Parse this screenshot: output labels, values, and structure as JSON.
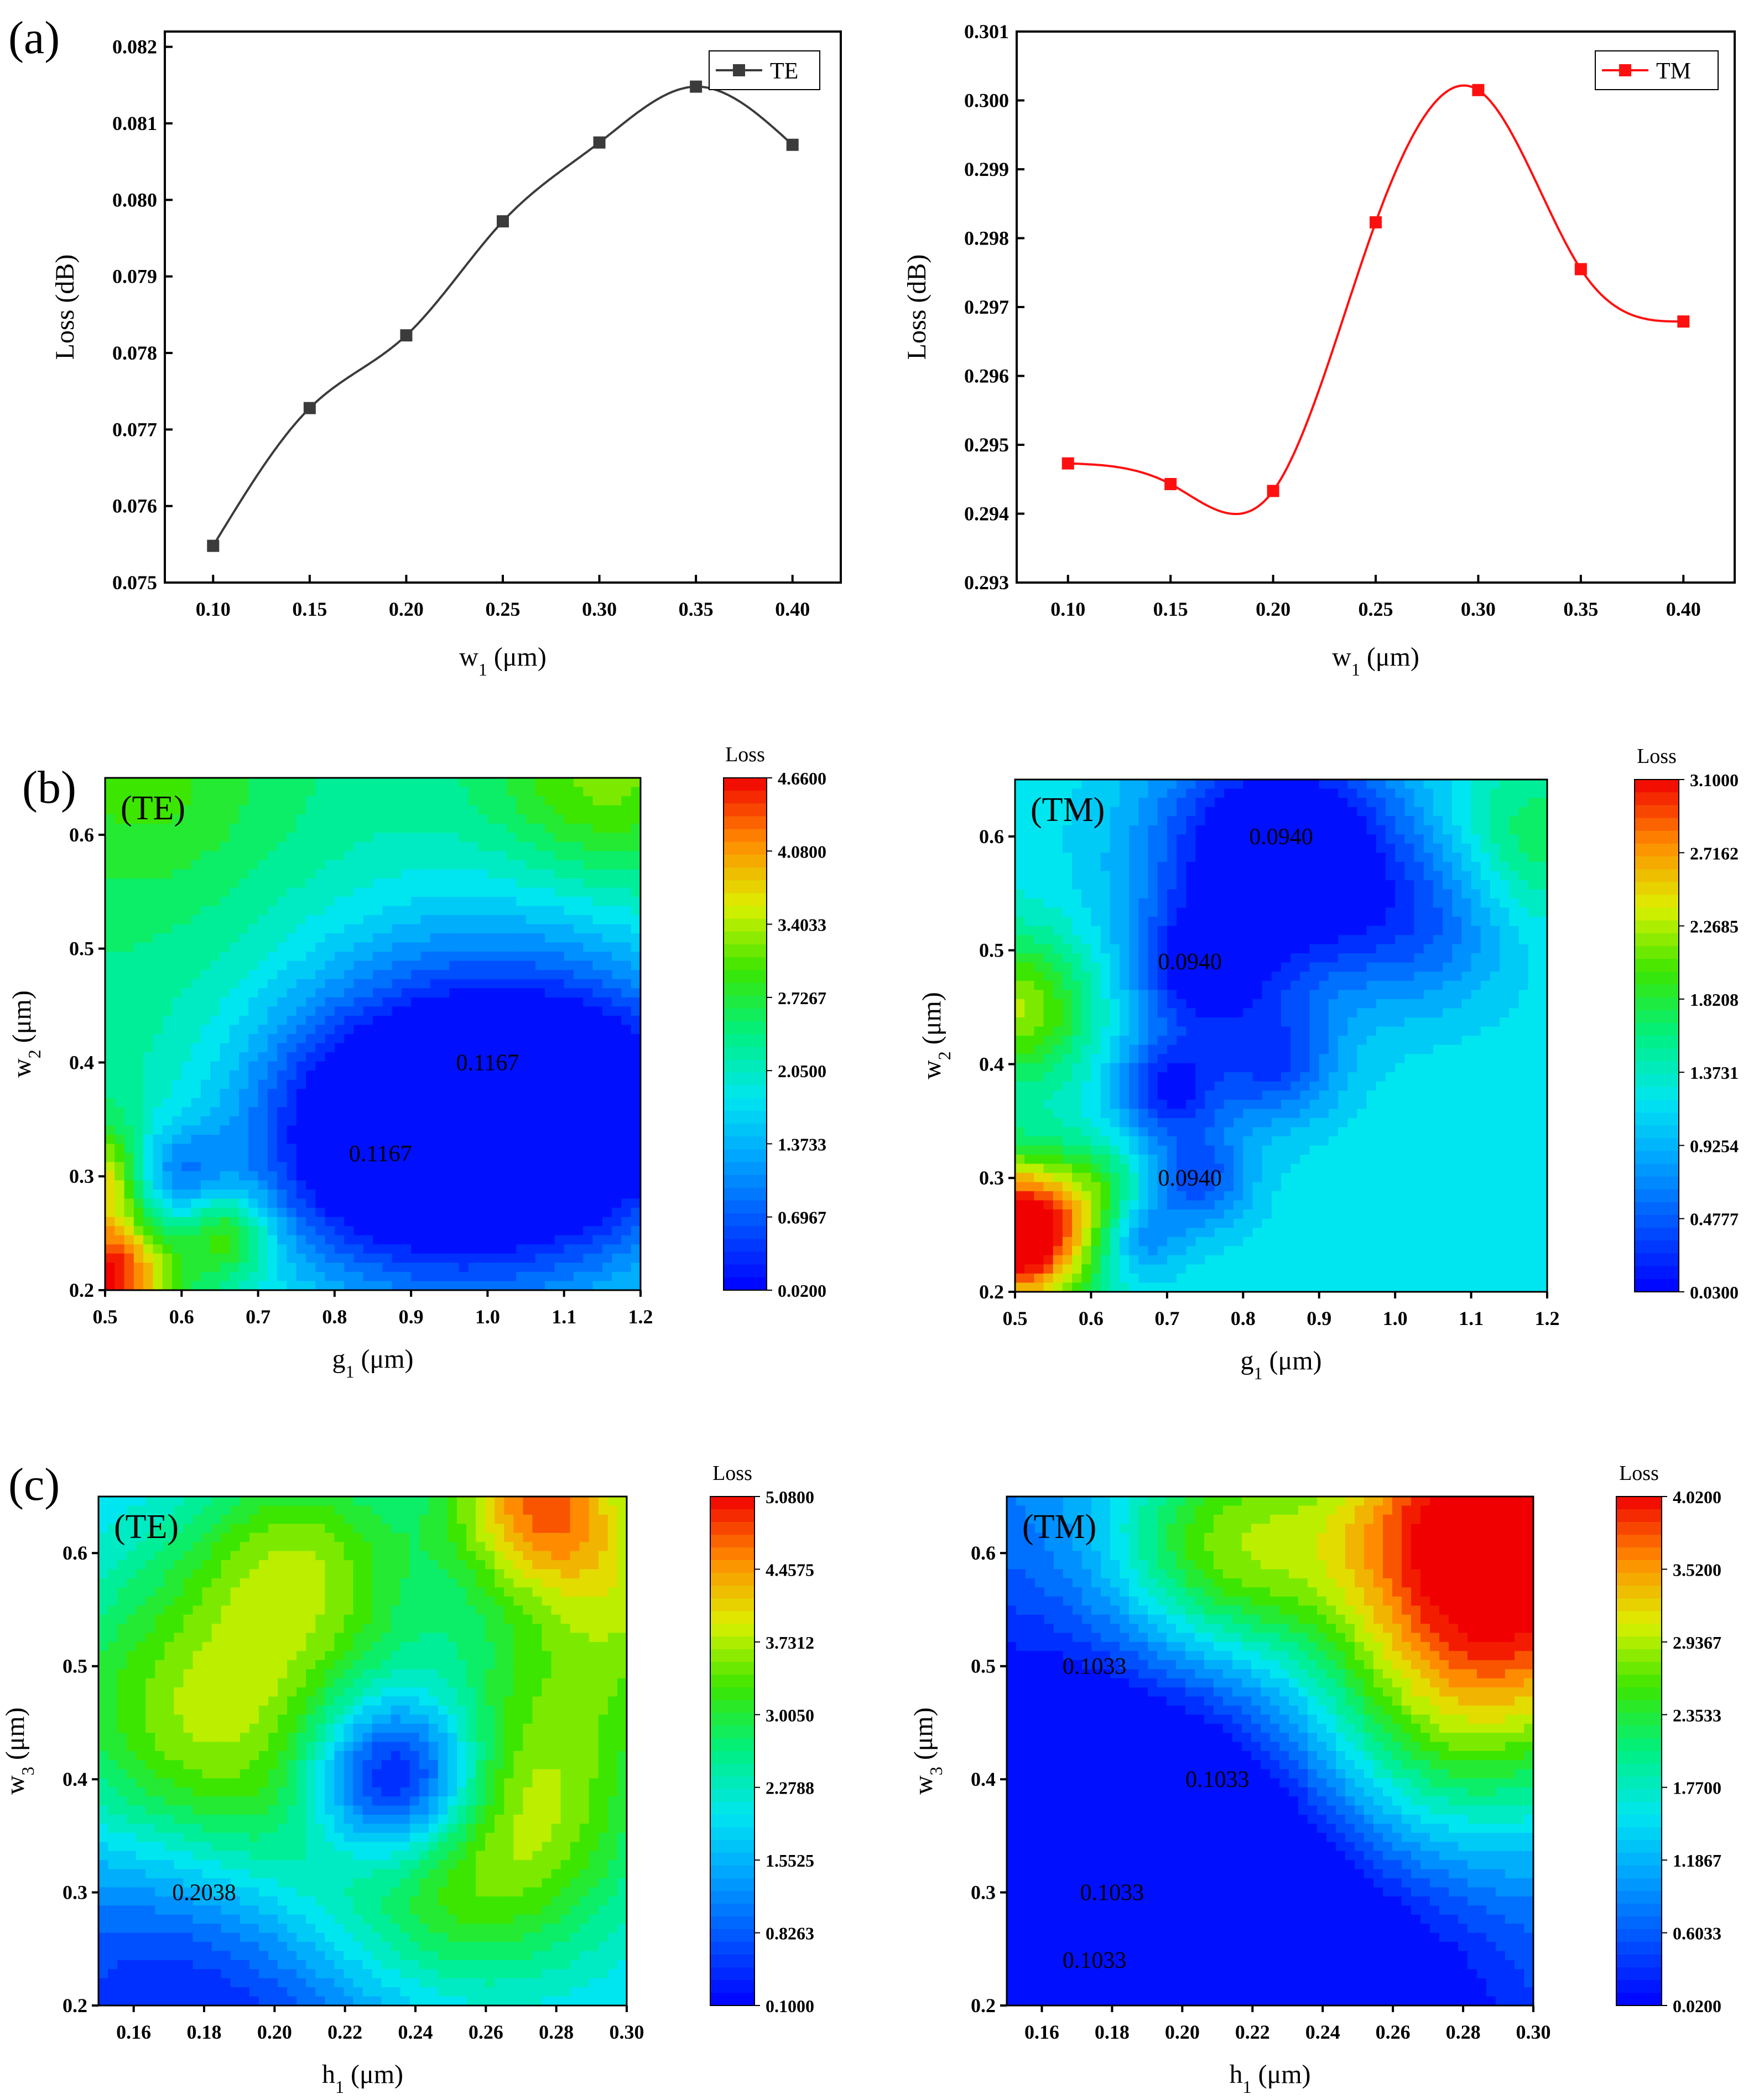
{
  "panel_labels": [
    "(a)",
    "(b)",
    "(c)"
  ],
  "chart_data": [
    {
      "type": "line",
      "panel": "(a)",
      "title": "",
      "xlabel": "w1 (μm)",
      "ylabel": "Loss (dB)",
      "x": [
        0.1,
        0.15,
        0.2,
        0.25,
        0.3,
        0.35,
        0.4
      ],
      "xlim": [
        0.075,
        0.425
      ],
      "ylim": [
        0.075,
        0.0822
      ],
      "xticks": [
        "0.10",
        "0.15",
        "0.20",
        "0.25",
        "0.30",
        "0.35",
        "0.40"
      ],
      "yticks": [
        "0.075",
        "0.076",
        "0.077",
        "0.078",
        "0.079",
        "0.080",
        "0.081",
        "0.082"
      ],
      "series": [
        {
          "name": "TE",
          "color": "#3b3b3b",
          "values": [
            0.07548,
            0.07728,
            0.07823,
            0.07972,
            0.08075,
            0.08148,
            0.08072
          ]
        }
      ],
      "legend": "top-right"
    },
    {
      "type": "line",
      "panel": "(a)",
      "title": "",
      "xlabel": "w1 (μm)",
      "ylabel": "Loss (dB)",
      "x": [
        0.1,
        0.15,
        0.2,
        0.25,
        0.3,
        0.35,
        0.4
      ],
      "xlim": [
        0.075,
        0.425
      ],
      "ylim": [
        0.293,
        0.301
      ],
      "xticks": [
        "0.10",
        "0.15",
        "0.20",
        "0.25",
        "0.30",
        "0.35",
        "0.40"
      ],
      "yticks": [
        "0.293",
        "0.294",
        "0.295",
        "0.296",
        "0.297",
        "0.298",
        "0.299",
        "0.300",
        "0.301"
      ],
      "series": [
        {
          "name": "TM",
          "color": "#ff1010",
          "values": [
            0.29473,
            0.29443,
            0.29433,
            0.29823,
            0.30015,
            0.29755,
            0.29679
          ]
        }
      ],
      "legend": "top-right"
    },
    {
      "type": "heatmap",
      "panel": "(b)",
      "mode": "TE",
      "inset_label": "(TE)",
      "xlabel": "g1 (μm)",
      "ylabel": "w2 (μm)",
      "xlim": [
        0.5,
        1.2
      ],
      "ylim": [
        0.2,
        0.65
      ],
      "xticks": [
        "0.5",
        "0.6",
        "0.7",
        "0.8",
        "0.9",
        "1.0",
        "1.1",
        "1.2"
      ],
      "yticks": [
        "0.2",
        "0.3",
        "0.4",
        "0.5",
        "0.6"
      ],
      "colorbar_title": "Loss",
      "colorbar_ticks": [
        "4.6600",
        "4.0800",
        "3.4033",
        "2.7267",
        "2.0500",
        "1.3733",
        "0.6967",
        "0.0200"
      ],
      "zlim": [
        0.02,
        4.66
      ],
      "annotations": [
        {
          "text": "0.1167",
          "x": 1.0,
          "y": 0.4
        },
        {
          "text": "0.1167",
          "x": 0.86,
          "y": 0.32
        }
      ],
      "field": [
        {
          "x": 1.0,
          "y": 0.35,
          "v": -3.0,
          "s": 0.18
        },
        {
          "x": 0.82,
          "y": 0.33,
          "v": -1.2,
          "s": 0.12
        },
        {
          "x": 1.18,
          "y": 0.36,
          "v": -1.0,
          "s": 0.12
        },
        {
          "x": 0.58,
          "y": 0.3,
          "v": -1.3,
          "s": 0.05
        },
        {
          "x": 0.66,
          "y": 0.25,
          "v": 1.2,
          "s": 0.04
        },
        {
          "x": 0.5,
          "y": 0.21,
          "v": 2.5,
          "s": 0.06
        },
        {
          "x": 0.5,
          "y": 0.3,
          "v": 1.6,
          "s": 0.05
        },
        {
          "x": 1.15,
          "y": 0.65,
          "v": 0.9,
          "s": 0.1
        },
        {
          "x": 0.55,
          "y": 0.65,
          "v": 0.6,
          "s": 0.12
        }
      ],
      "base_value": 2.3
    },
    {
      "type": "heatmap",
      "panel": "(b)",
      "mode": "TM",
      "inset_label": "(TM)",
      "xlabel": "g1 (μm)",
      "ylabel": "w2 (μm)",
      "xlim": [
        0.5,
        1.2
      ],
      "ylim": [
        0.2,
        0.65
      ],
      "xticks": [
        "0.5",
        "0.6",
        "0.7",
        "0.8",
        "0.9",
        "1.0",
        "1.1",
        "1.2"
      ],
      "yticks": [
        "0.2",
        "0.3",
        "0.4",
        "0.5",
        "0.6"
      ],
      "colorbar_title": "Loss",
      "colorbar_ticks": [
        "3.1000",
        "2.7162",
        "2.2685",
        "1.8208",
        "1.3731",
        "0.9254",
        "0.4777",
        "0.0300"
      ],
      "zlim": [
        0.03,
        3.1
      ],
      "annotations": [
        {
          "text": "0.0940",
          "x": 0.85,
          "y": 0.6
        },
        {
          "text": "0.0940",
          "x": 0.73,
          "y": 0.49
        },
        {
          "text": "0.0940",
          "x": 0.73,
          "y": 0.3
        }
      ],
      "field": [
        {
          "x": 0.85,
          "y": 0.58,
          "v": -1.6,
          "s": 0.12
        },
        {
          "x": 0.74,
          "y": 0.48,
          "v": -0.9,
          "s": 0.06
        },
        {
          "x": 0.7,
          "y": 0.38,
          "v": -1.0,
          "s": 0.05
        },
        {
          "x": 0.84,
          "y": 0.4,
          "v": -0.8,
          "s": 0.06
        },
        {
          "x": 0.74,
          "y": 0.3,
          "v": -0.8,
          "s": 0.05
        },
        {
          "x": 0.66,
          "y": 0.25,
          "v": -0.7,
          "s": 0.04
        },
        {
          "x": 1.05,
          "y": 0.52,
          "v": -0.5,
          "s": 0.08
        },
        {
          "x": 0.5,
          "y": 0.25,
          "v": 2.4,
          "s": 0.07
        },
        {
          "x": 0.5,
          "y": 0.45,
          "v": 1.0,
          "s": 0.07
        },
        {
          "x": 0.62,
          "y": 0.28,
          "v": 0.5,
          "s": 0.05
        },
        {
          "x": 1.18,
          "y": 0.6,
          "v": 0.5,
          "s": 0.08
        }
      ],
      "base_value": 1.2
    },
    {
      "type": "heatmap",
      "panel": "(c)",
      "mode": "TE",
      "inset_label": "(TE)",
      "xlabel": "h1 (μm)",
      "ylabel": "w3 (μm)",
      "xlim": [
        0.15,
        0.3
      ],
      "ylim": [
        0.2,
        0.65
      ],
      "xticks": [
        "0.16",
        "0.18",
        "0.20",
        "0.22",
        "0.24",
        "0.26",
        "0.28",
        "0.30"
      ],
      "yticks": [
        "0.2",
        "0.3",
        "0.4",
        "0.5",
        "0.6"
      ],
      "colorbar_title": "Loss",
      "colorbar_ticks": [
        "5.0800",
        "4.4575",
        "3.7312",
        "3.0050",
        "2.2788",
        "1.5525",
        "0.8263",
        "0.1000"
      ],
      "zlim": [
        0.1,
        5.08
      ],
      "annotations": [
        {
          "text": "0.2038",
          "x": 0.18,
          "y": 0.3
        }
      ],
      "field": [
        {
          "x": 0.18,
          "y": 0.44,
          "v": 2.2,
          "s": 0.035
        },
        {
          "x": 0.24,
          "y": 0.32,
          "v": 2.0,
          "s": 0.035
        },
        {
          "x": 0.27,
          "y": 0.4,
          "v": 1.5,
          "s": 0.03
        },
        {
          "x": 0.205,
          "y": 0.4,
          "v": 1.0,
          "s": 0.05
        },
        {
          "x": 0.235,
          "y": 0.4,
          "v": -3.4,
          "s": 0.018
        },
        {
          "x": 0.19,
          "y": 0.25,
          "v": -2.2,
          "s": 0.05
        },
        {
          "x": 0.23,
          "y": 0.52,
          "v": -0.9,
          "s": 0.05
        },
        {
          "x": 0.21,
          "y": 0.6,
          "v": 1.8,
          "s": 0.025
        },
        {
          "x": 0.275,
          "y": 0.65,
          "v": 2.8,
          "s": 0.02
        },
        {
          "x": 0.3,
          "y": 0.55,
          "v": 1.6,
          "s": 0.025
        }
      ],
      "base_value": 1.7
    },
    {
      "type": "heatmap",
      "panel": "(c)",
      "mode": "TM",
      "inset_label": "(TM)",
      "xlabel": "h1 (μm)",
      "ylabel": "w3 (μm)",
      "xlim": [
        0.15,
        0.3
      ],
      "ylim": [
        0.2,
        0.65
      ],
      "xticks": [
        "0.16",
        "0.18",
        "0.20",
        "0.22",
        "0.24",
        "0.26",
        "0.28",
        "0.30"
      ],
      "yticks": [
        "0.2",
        "0.3",
        "0.4",
        "0.5",
        "0.6"
      ],
      "colorbar_title": "Loss",
      "colorbar_ticks": [
        "4.0200",
        "3.5200",
        "2.9367",
        "2.3533",
        "1.7700",
        "1.1867",
        "0.6033",
        "0.0200"
      ],
      "zlim": [
        0.02,
        4.02
      ],
      "annotations": [
        {
          "text": "0.1033",
          "x": 0.175,
          "y": 0.5
        },
        {
          "text": "0.1033",
          "x": 0.21,
          "y": 0.4
        },
        {
          "text": "0.1033",
          "x": 0.18,
          "y": 0.3
        },
        {
          "text": "0.1033",
          "x": 0.175,
          "y": 0.24
        }
      ],
      "field": [
        {
          "x": 0.175,
          "y": 0.32,
          "v": -1.6,
          "s": 0.06
        },
        {
          "x": 0.24,
          "y": 0.22,
          "v": -1.2,
          "s": 0.05
        },
        {
          "x": 0.21,
          "y": 0.6,
          "v": 1.8,
          "s": 0.025
        },
        {
          "x": 0.3,
          "y": 0.6,
          "v": 2.6,
          "s": 0.04
        },
        {
          "x": 0.28,
          "y": 0.64,
          "v": 1.2,
          "s": 0.03
        },
        {
          "x": 0.27,
          "y": 0.45,
          "v": 1.0,
          "s": 0.03
        },
        {
          "x": 0.265,
          "y": 0.36,
          "v": 0.6,
          "s": 0.035
        }
      ],
      "base_value": 1.0
    }
  ]
}
